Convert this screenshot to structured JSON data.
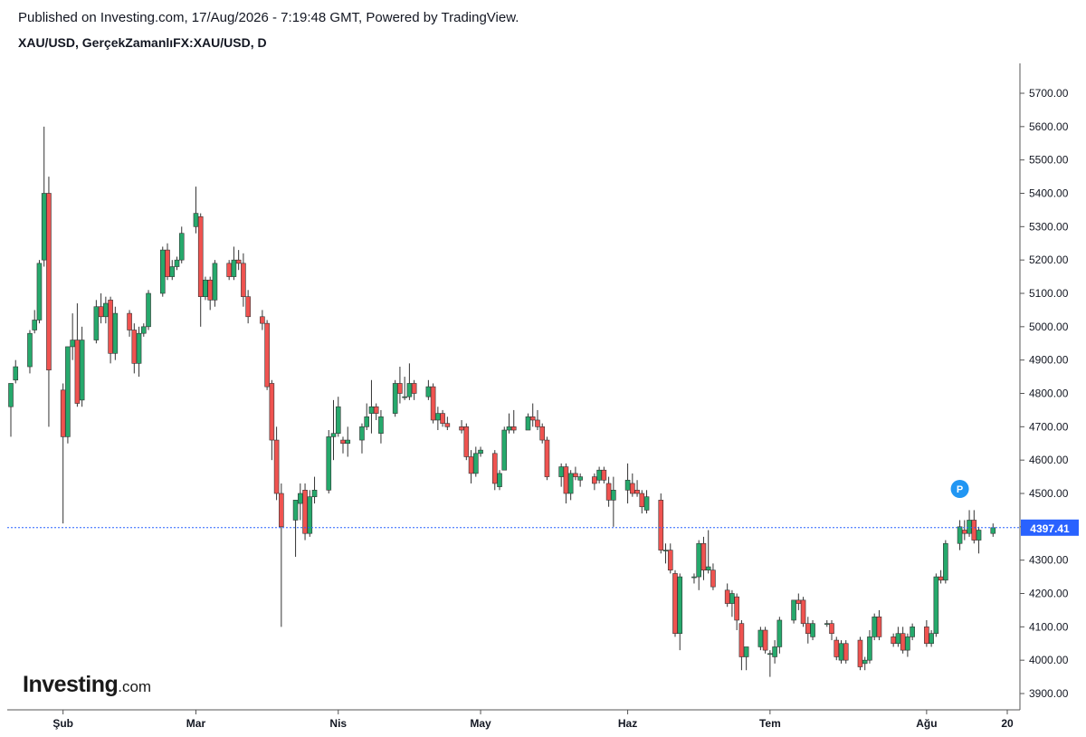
{
  "header": {
    "published": "Published on Investing.com, 17/Aug/2026 - 7:19:48 GMT, Powered by TradingView.",
    "symbol": "XAU/USD, GerçekZamanlıFX:XAU/USD, D"
  },
  "logo": {
    "main": "Investing",
    "tld": ".com"
  },
  "colors": {
    "up": "#26a96c",
    "down": "#ef5350",
    "wick": "#555555",
    "last_price_line": "#2962ff",
    "last_price_badge": "#2962ff",
    "p_marker": "#2196f3"
  },
  "last_price": {
    "label": "4397.41",
    "value": 4397.41
  },
  "marker": {
    "label": "P",
    "date": "2026-08-10",
    "value": 4500
  },
  "chart_data": {
    "type": "candlestick",
    "title": "",
    "xlabel": "",
    "ylabel": "",
    "ylim": [
      3860,
      5760
    ],
    "yticks": [
      3900,
      4000,
      4100,
      4200,
      4300,
      4400,
      4500,
      4600,
      4700,
      4800,
      4900,
      5000,
      5100,
      5200,
      5300,
      5400,
      5500,
      5600,
      5700
    ],
    "ytick_labels": [
      "3900.00",
      "4000.00",
      "4100.00",
      "4200.00",
      "4300.00",
      "4400.00",
      "4500.00",
      "4600.00",
      "4700.00",
      "4800.00",
      "4900.00",
      "5000.00",
      "5100.00",
      "5200.00",
      "5300.00",
      "5400.00",
      "5500.00",
      "5600.00",
      "5700.00"
    ],
    "xticks": [
      {
        "label": "Şub",
        "date": "2026-02-02"
      },
      {
        "label": "Mar",
        "date": "2026-03-02"
      },
      {
        "label": "Nis",
        "date": "2026-04-01"
      },
      {
        "label": "May",
        "date": "2026-05-01"
      },
      {
        "label": "Haz",
        "date": "2026-06-01"
      },
      {
        "label": "Tem",
        "date": "2026-07-01"
      },
      {
        "label": "Ağu",
        "date": "2026-08-03"
      },
      {
        "label": "20",
        "date": "2026-08-20"
      }
    ],
    "xlim": [
      "2026-01-22",
      "2026-08-20"
    ],
    "grid": false,
    "candles": [
      {
        "d": "2026-01-22",
        "o": 4760,
        "h": 4820,
        "l": 4670,
        "c": 4830
      },
      {
        "d": "2026-01-23",
        "o": 4840,
        "h": 4900,
        "l": 4830,
        "c": 4880
      },
      {
        "d": "2026-01-26",
        "o": 4880,
        "h": 4990,
        "l": 4860,
        "c": 4980
      },
      {
        "d": "2026-01-27",
        "o": 4990,
        "h": 5050,
        "l": 4980,
        "c": 5020
      },
      {
        "d": "2026-01-28",
        "o": 5020,
        "h": 5200,
        "l": 5010,
        "c": 5190
      },
      {
        "d": "2026-01-29",
        "o": 5200,
        "h": 5600,
        "l": 5180,
        "c": 5400
      },
      {
        "d": "2026-01-30",
        "o": 5400,
        "h": 5450,
        "l": 4700,
        "c": 4870
      },
      {
        "d": "2026-02-02",
        "o": 4810,
        "h": 4830,
        "l": 4410,
        "c": 4670
      },
      {
        "d": "2026-02-03",
        "o": 4670,
        "h": 4940,
        "l": 4650,
        "c": 4940
      },
      {
        "d": "2026-02-04",
        "o": 4940,
        "h": 5040,
        "l": 4900,
        "c": 4960
      },
      {
        "d": "2026-02-05",
        "o": 4960,
        "h": 5070,
        "l": 4760,
        "c": 4770
      },
      {
        "d": "2026-02-06",
        "o": 4780,
        "h": 5000,
        "l": 4760,
        "c": 4960
      },
      {
        "d": "2026-02-09",
        "o": 4960,
        "h": 5080,
        "l": 4950,
        "c": 5060
      },
      {
        "d": "2026-02-10",
        "o": 5060,
        "h": 5100,
        "l": 5010,
        "c": 5030
      },
      {
        "d": "2026-02-11",
        "o": 5030,
        "h": 5090,
        "l": 5010,
        "c": 5070
      },
      {
        "d": "2026-02-12",
        "o": 5080,
        "h": 5090,
        "l": 4890,
        "c": 4920
      },
      {
        "d": "2026-02-13",
        "o": 4920,
        "h": 5060,
        "l": 4900,
        "c": 5040
      },
      {
        "d": "2026-02-16",
        "o": 5040,
        "h": 5050,
        "l": 4970,
        "c": 4990
      },
      {
        "d": "2026-02-17",
        "o": 4990,
        "h": 5010,
        "l": 4860,
        "c": 4890
      },
      {
        "d": "2026-02-18",
        "o": 4890,
        "h": 5000,
        "l": 4850,
        "c": 4980
      },
      {
        "d": "2026-02-19",
        "o": 4980,
        "h": 5010,
        "l": 4970,
        "c": 5000
      },
      {
        "d": "2026-02-20",
        "o": 5000,
        "h": 5110,
        "l": 4990,
        "c": 5100
      },
      {
        "d": "2026-02-23",
        "o": 5100,
        "h": 5240,
        "l": 5090,
        "c": 5230
      },
      {
        "d": "2026-02-24",
        "o": 5230,
        "h": 5250,
        "l": 5140,
        "c": 5150
      },
      {
        "d": "2026-02-25",
        "o": 5150,
        "h": 5200,
        "l": 5140,
        "c": 5180
      },
      {
        "d": "2026-02-26",
        "o": 5180,
        "h": 5210,
        "l": 5170,
        "c": 5200
      },
      {
        "d": "2026-02-27",
        "o": 5200,
        "h": 5300,
        "l": 5190,
        "c": 5280
      },
      {
        "d": "2026-03-02",
        "o": 5300,
        "h": 5420,
        "l": 5280,
        "c": 5340
      },
      {
        "d": "2026-03-03",
        "o": 5330,
        "h": 5340,
        "l": 5000,
        "c": 5090
      },
      {
        "d": "2026-03-04",
        "o": 5090,
        "h": 5150,
        "l": 5080,
        "c": 5140
      },
      {
        "d": "2026-03-05",
        "o": 5140,
        "h": 5150,
        "l": 5050,
        "c": 5080
      },
      {
        "d": "2026-03-06",
        "o": 5080,
        "h": 5200,
        "l": 5060,
        "c": 5190
      },
      {
        "d": "2026-03-09",
        "o": 5190,
        "h": 5200,
        "l": 5140,
        "c": 5150
      },
      {
        "d": "2026-03-10",
        "o": 5150,
        "h": 5240,
        "l": 5140,
        "c": 5200
      },
      {
        "d": "2026-03-11",
        "o": 5200,
        "h": 5230,
        "l": 5170,
        "c": 5190
      },
      {
        "d": "2026-03-12",
        "o": 5190,
        "h": 5220,
        "l": 5060,
        "c": 5090
      },
      {
        "d": "2026-03-13",
        "o": 5090,
        "h": 5110,
        "l": 5010,
        "c": 5030
      },
      {
        "d": "2026-03-16",
        "o": 5030,
        "h": 5050,
        "l": 4990,
        "c": 5010
      },
      {
        "d": "2026-03-17",
        "o": 5010,
        "h": 5020,
        "l": 4810,
        "c": 4820
      },
      {
        "d": "2026-03-18",
        "o": 4830,
        "h": 4840,
        "l": 4600,
        "c": 4660
      },
      {
        "d": "2026-03-19",
        "o": 4660,
        "h": 4700,
        "l": 4480,
        "c": 4500
      },
      {
        "d": "2026-03-20",
        "o": 4500,
        "h": 4530,
        "l": 4100,
        "c": 4400
      },
      {
        "d": "2026-03-23",
        "o": 4420,
        "h": 4480,
        "l": 4310,
        "c": 4480
      },
      {
        "d": "2026-03-24",
        "o": 4470,
        "h": 4530,
        "l": 4420,
        "c": 4500
      },
      {
        "d": "2026-03-25",
        "o": 4510,
        "h": 4530,
        "l": 4360,
        "c": 4380
      },
      {
        "d": "2026-03-26",
        "o": 4380,
        "h": 4510,
        "l": 4370,
        "c": 4490
      },
      {
        "d": "2026-03-27",
        "o": 4490,
        "h": 4550,
        "l": 4470,
        "c": 4510
      },
      {
        "d": "2026-03-30",
        "o": 4510,
        "h": 4690,
        "l": 4500,
        "c": 4670
      },
      {
        "d": "2026-03-31",
        "o": 4670,
        "h": 4780,
        "l": 4600,
        "c": 4680
      },
      {
        "d": "2026-04-01",
        "o": 4680,
        "h": 4790,
        "l": 4670,
        "c": 4760
      },
      {
        "d": "2026-04-02",
        "o": 4660,
        "h": 4670,
        "l": 4620,
        "c": 4650
      },
      {
        "d": "2026-04-03",
        "o": 4650,
        "h": 4700,
        "l": 4610,
        "c": 4660
      },
      {
        "d": "2026-04-06",
        "o": 4660,
        "h": 4710,
        "l": 4620,
        "c": 4700
      },
      {
        "d": "2026-04-07",
        "o": 4700,
        "h": 4770,
        "l": 4690,
        "c": 4730
      },
      {
        "d": "2026-04-08",
        "o": 4740,
        "h": 4840,
        "l": 4680,
        "c": 4760
      },
      {
        "d": "2026-04-09",
        "o": 4760,
        "h": 4770,
        "l": 4720,
        "c": 4740
      },
      {
        "d": "2026-04-10",
        "o": 4680,
        "h": 4750,
        "l": 4650,
        "c": 4730
      },
      {
        "d": "2026-04-13",
        "o": 4740,
        "h": 4840,
        "l": 4730,
        "c": 4830
      },
      {
        "d": "2026-04-14",
        "o": 4830,
        "h": 4880,
        "l": 4770,
        "c": 4800
      },
      {
        "d": "2026-04-15",
        "o": 4790,
        "h": 4850,
        "l": 4780,
        "c": 4790
      },
      {
        "d": "2026-04-16",
        "o": 4790,
        "h": 4890,
        "l": 4780,
        "c": 4830
      },
      {
        "d": "2026-04-17",
        "o": 4830,
        "h": 4840,
        "l": 4780,
        "c": 4800
      },
      {
        "d": "2026-04-20",
        "o": 4790,
        "h": 4840,
        "l": 4780,
        "c": 4820
      },
      {
        "d": "2026-04-21",
        "o": 4820,
        "h": 4830,
        "l": 4710,
        "c": 4720
      },
      {
        "d": "2026-04-22",
        "o": 4720,
        "h": 4760,
        "l": 4690,
        "c": 4740
      },
      {
        "d": "2026-04-23",
        "o": 4740,
        "h": 4750,
        "l": 4700,
        "c": 4710
      },
      {
        "d": "2026-04-24",
        "o": 4710,
        "h": 4730,
        "l": 4690,
        "c": 4700
      },
      {
        "d": "2026-04-27",
        "o": 4700,
        "h": 4720,
        "l": 4680,
        "c": 4690
      },
      {
        "d": "2026-04-28",
        "o": 4700,
        "h": 4710,
        "l": 4600,
        "c": 4610
      },
      {
        "d": "2026-04-29",
        "o": 4610,
        "h": 4630,
        "l": 4530,
        "c": 4560
      },
      {
        "d": "2026-04-30",
        "o": 4560,
        "h": 4640,
        "l": 4550,
        "c": 4620
      },
      {
        "d": "2026-05-01",
        "o": 4620,
        "h": 4640,
        "l": 4610,
        "c": 4630
      },
      {
        "d": "2026-05-04",
        "o": 4620,
        "h": 4630,
        "l": 4510,
        "c": 4530
      },
      {
        "d": "2026-05-05",
        "o": 4520,
        "h": 4570,
        "l": 4510,
        "c": 4560
      },
      {
        "d": "2026-05-06",
        "o": 4570,
        "h": 4700,
        "l": 4570,
        "c": 4690
      },
      {
        "d": "2026-05-07",
        "o": 4690,
        "h": 4740,
        "l": 4680,
        "c": 4700
      },
      {
        "d": "2026-05-08",
        "o": 4700,
        "h": 4750,
        "l": 4680,
        "c": 4690
      },
      {
        "d": "2026-05-11",
        "o": 4690,
        "h": 4740,
        "l": 4690,
        "c": 4730
      },
      {
        "d": "2026-05-12",
        "o": 4730,
        "h": 4770,
        "l": 4700,
        "c": 4720
      },
      {
        "d": "2026-05-13",
        "o": 4720,
        "h": 4750,
        "l": 4690,
        "c": 4700
      },
      {
        "d": "2026-05-14",
        "o": 4700,
        "h": 4710,
        "l": 4650,
        "c": 4660
      },
      {
        "d": "2026-05-15",
        "o": 4660,
        "h": 4670,
        "l": 4540,
        "c": 4550
      },
      {
        "d": "2026-05-18",
        "o": 4550,
        "h": 4590,
        "l": 4520,
        "c": 4580
      },
      {
        "d": "2026-05-19",
        "o": 4580,
        "h": 4590,
        "l": 4470,
        "c": 4500
      },
      {
        "d": "2026-05-20",
        "o": 4500,
        "h": 4570,
        "l": 4480,
        "c": 4560
      },
      {
        "d": "2026-05-21",
        "o": 4560,
        "h": 4580,
        "l": 4540,
        "c": 4550
      },
      {
        "d": "2026-05-22",
        "o": 4540,
        "h": 4560,
        "l": 4520,
        "c": 4550
      },
      {
        "d": "2026-05-25",
        "o": 4550,
        "h": 4560,
        "l": 4510,
        "c": 4530
      },
      {
        "d": "2026-05-26",
        "o": 4540,
        "h": 4580,
        "l": 4530,
        "c": 4570
      },
      {
        "d": "2026-05-27",
        "o": 4570,
        "h": 4580,
        "l": 4530,
        "c": 4540
      },
      {
        "d": "2026-05-28",
        "o": 4530,
        "h": 4550,
        "l": 4460,
        "c": 4480
      },
      {
        "d": "2026-05-29",
        "o": 4480,
        "h": 4550,
        "l": 4400,
        "c": 4510
      },
      {
        "d": "2026-06-01",
        "o": 4510,
        "h": 4590,
        "l": 4470,
        "c": 4540
      },
      {
        "d": "2026-06-02",
        "o": 4530,
        "h": 4560,
        "l": 4490,
        "c": 4500
      },
      {
        "d": "2026-06-03",
        "o": 4510,
        "h": 4540,
        "l": 4490,
        "c": 4500
      },
      {
        "d": "2026-06-04",
        "o": 4500,
        "h": 4510,
        "l": 4440,
        "c": 4460
      },
      {
        "d": "2026-06-05",
        "o": 4450,
        "h": 4510,
        "l": 4440,
        "c": 4490
      },
      {
        "d": "2026-06-08",
        "o": 4480,
        "h": 4500,
        "l": 4320,
        "c": 4330
      },
      {
        "d": "2026-06-09",
        "o": 4330,
        "h": 4350,
        "l": 4290,
        "c": 4330
      },
      {
        "d": "2026-06-10",
        "o": 4330,
        "h": 4350,
        "l": 4260,
        "c": 4270
      },
      {
        "d": "2026-06-11",
        "o": 4260,
        "h": 4270,
        "l": 4070,
        "c": 4080
      },
      {
        "d": "2026-06-12",
        "o": 4080,
        "h": 4260,
        "l": 4030,
        "c": 4250
      },
      {
        "d": "2026-06-15",
        "o": 4250,
        "h": 4260,
        "l": 4230,
        "c": 4250
      },
      {
        "d": "2026-06-16",
        "o": 4250,
        "h": 4360,
        "l": 4210,
        "c": 4350
      },
      {
        "d": "2026-06-17",
        "o": 4350,
        "h": 4370,
        "l": 4240,
        "c": 4270
      },
      {
        "d": "2026-06-18",
        "o": 4270,
        "h": 4390,
        "l": 4260,
        "c": 4280
      },
      {
        "d": "2026-06-19",
        "o": 4270,
        "h": 4290,
        "l": 4210,
        "c": 4220
      },
      {
        "d": "2026-06-22",
        "o": 4210,
        "h": 4230,
        "l": 4160,
        "c": 4170
      },
      {
        "d": "2026-06-23",
        "o": 4170,
        "h": 4210,
        "l": 4130,
        "c": 4200
      },
      {
        "d": "2026-06-24",
        "o": 4190,
        "h": 4200,
        "l": 4090,
        "c": 4120
      },
      {
        "d": "2026-06-25",
        "o": 4110,
        "h": 4120,
        "l": 3970,
        "c": 4010
      },
      {
        "d": "2026-06-26",
        "o": 4010,
        "h": 4040,
        "l": 3970,
        "c": 4040
      },
      {
        "d": "2026-06-29",
        "o": 4040,
        "h": 4100,
        "l": 4030,
        "c": 4090
      },
      {
        "d": "2026-06-30",
        "o": 4090,
        "h": 4100,
        "l": 4020,
        "c": 4030
      },
      {
        "d": "2026-07-01",
        "o": 4020,
        "h": 4030,
        "l": 3950,
        "c": 4020
      },
      {
        "d": "2026-07-02",
        "o": 4010,
        "h": 4060,
        "l": 3990,
        "c": 4040
      },
      {
        "d": "2026-07-03",
        "o": 4040,
        "h": 4130,
        "l": 4020,
        "c": 4120
      },
      {
        "d": "2026-07-06",
        "o": 4120,
        "h": 4180,
        "l": 4110,
        "c": 4180
      },
      {
        "d": "2026-07-07",
        "o": 4180,
        "h": 4200,
        "l": 4150,
        "c": 4170
      },
      {
        "d": "2026-07-08",
        "o": 4180,
        "h": 4190,
        "l": 4100,
        "c": 4110
      },
      {
        "d": "2026-07-09",
        "o": 4110,
        "h": 4130,
        "l": 4050,
        "c": 4080
      },
      {
        "d": "2026-07-10",
        "o": 4070,
        "h": 4120,
        "l": 4060,
        "c": 4110
      },
      {
        "d": "2026-07-13",
        "o": 4110,
        "h": 4120,
        "l": 4100,
        "c": 4110
      },
      {
        "d": "2026-07-14",
        "o": 4110,
        "h": 4120,
        "l": 4060,
        "c": 4080
      },
      {
        "d": "2026-07-15",
        "o": 4060,
        "h": 4070,
        "l": 4000,
        "c": 4010
      },
      {
        "d": "2026-07-16",
        "o": 4000,
        "h": 4060,
        "l": 3990,
        "c": 4050
      },
      {
        "d": "2026-07-17",
        "o": 4050,
        "h": 4060,
        "l": 3990,
        "c": 4000
      },
      {
        "d": "2026-07-20",
        "o": 4060,
        "h": 4070,
        "l": 3970,
        "c": 3980
      },
      {
        "d": "2026-07-21",
        "o": 3990,
        "h": 4010,
        "l": 3970,
        "c": 4000
      },
      {
        "d": "2026-07-22",
        "o": 4000,
        "h": 4090,
        "l": 3990,
        "c": 4070
      },
      {
        "d": "2026-07-23",
        "o": 4070,
        "h": 4140,
        "l": 4060,
        "c": 4130
      },
      {
        "d": "2026-07-24",
        "o": 4130,
        "h": 4150,
        "l": 4060,
        "c": 4070
      },
      {
        "d": "2026-07-27",
        "o": 4070,
        "h": 4080,
        "l": 4040,
        "c": 4050
      },
      {
        "d": "2026-07-28",
        "o": 4050,
        "h": 4100,
        "l": 4040,
        "c": 4080
      },
      {
        "d": "2026-07-29",
        "o": 4080,
        "h": 4100,
        "l": 4020,
        "c": 4030
      },
      {
        "d": "2026-07-30",
        "o": 4030,
        "h": 4080,
        "l": 4010,
        "c": 4070
      },
      {
        "d": "2026-07-31",
        "o": 4070,
        "h": 4110,
        "l": 4060,
        "c": 4100
      },
      {
        "d": "2026-08-03",
        "o": 4100,
        "h": 4120,
        "l": 4040,
        "c": 4050
      },
      {
        "d": "2026-08-04",
        "o": 4050,
        "h": 4090,
        "l": 4040,
        "c": 4080
      },
      {
        "d": "2026-08-05",
        "o": 4080,
        "h": 4260,
        "l": 4070,
        "c": 4250
      },
      {
        "d": "2026-08-06",
        "o": 4250,
        "h": 4270,
        "l": 4230,
        "c": 4240
      },
      {
        "d": "2026-08-07",
        "o": 4240,
        "h": 4360,
        "l": 4230,
        "c": 4350
      },
      {
        "d": "2026-08-10",
        "o": 4350,
        "h": 4420,
        "l": 4330,
        "c": 4400
      },
      {
        "d": "2026-08-11",
        "o": 4390,
        "h": 4420,
        "l": 4360,
        "c": 4380
      },
      {
        "d": "2026-08-12",
        "o": 4380,
        "h": 4450,
        "l": 4370,
        "c": 4420
      },
      {
        "d": "2026-08-13",
        "o": 4420,
        "h": 4450,
        "l": 4350,
        "c": 4360
      },
      {
        "d": "2026-08-14",
        "o": 4360,
        "h": 4400,
        "l": 4320,
        "c": 4390
      },
      {
        "d": "2026-08-17",
        "o": 4380,
        "h": 4410,
        "l": 4370,
        "c": 4397.41
      }
    ]
  }
}
